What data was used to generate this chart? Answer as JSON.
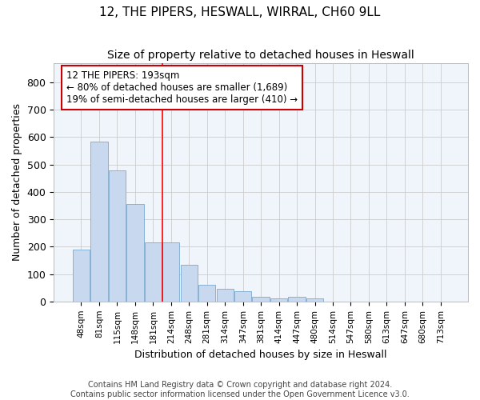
{
  "title1": "12, THE PIPERS, HESWALL, WIRRAL, CH60 9LL",
  "title2": "Size of property relative to detached houses in Heswall",
  "xlabel": "Distribution of detached houses by size in Heswall",
  "ylabel": "Number of detached properties",
  "footnote": "Contains HM Land Registry data © Crown copyright and database right 2024.\nContains public sector information licensed under the Open Government Licence v3.0.",
  "bar_labels": [
    "48sqm",
    "81sqm",
    "115sqm",
    "148sqm",
    "181sqm",
    "214sqm",
    "248sqm",
    "281sqm",
    "314sqm",
    "347sqm",
    "381sqm",
    "414sqm",
    "447sqm",
    "480sqm",
    "514sqm",
    "547sqm",
    "580sqm",
    "613sqm",
    "647sqm",
    "680sqm",
    "713sqm"
  ],
  "bar_values": [
    190,
    585,
    480,
    355,
    215,
    215,
    135,
    60,
    45,
    38,
    18,
    12,
    18,
    10,
    0,
    0,
    0,
    0,
    0,
    0,
    0
  ],
  "bar_color": "#c8d8ee",
  "bar_edge_color": "#7aaad0",
  "grid_color": "#cccccc",
  "background_color": "#ffffff",
  "plot_bg_color": "#f0f4fb",
  "red_line_x": 5.0,
  "annotation_text": "12 THE PIPERS: 193sqm\n← 80% of detached houses are smaller (1,689)\n19% of semi-detached houses are larger (410) →",
  "annotation_box_color": "#ffffff",
  "annotation_box_edge": "#cc0000",
  "ylim": [
    0,
    870
  ],
  "yticks": [
    0,
    100,
    200,
    300,
    400,
    500,
    600,
    700,
    800
  ],
  "title1_fontsize": 11,
  "title2_fontsize": 10
}
